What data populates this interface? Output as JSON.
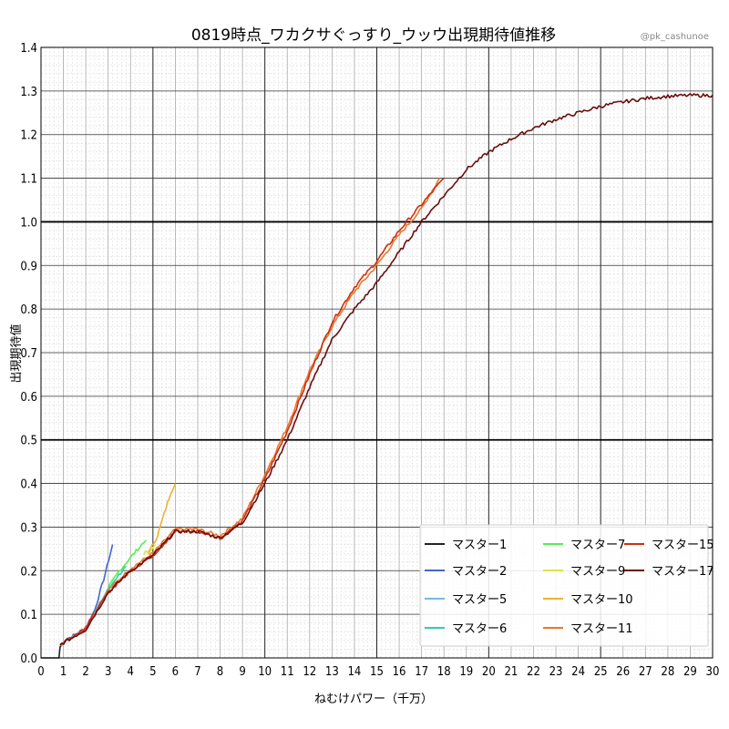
{
  "chart_data": {
    "type": "line",
    "title": "0819時点_ワカクサぐっすり_ウッウ出現期待値推移",
    "credit": "@pk_cashunoe",
    "xlabel": "ねむけパワー（千万）",
    "ylabel": "出現期待値",
    "xlim": [
      0,
      30
    ],
    "ylim": [
      0,
      1.4
    ],
    "xticks": [
      "0",
      "1",
      "2",
      "3",
      "4",
      "5",
      "6",
      "7",
      "8",
      "9",
      "10",
      "11",
      "12",
      "13",
      "14",
      "15",
      "16",
      "17",
      "18",
      "19",
      "20",
      "21",
      "22",
      "23",
      "24",
      "25",
      "26",
      "27",
      "28",
      "29",
      "30"
    ],
    "yticks": [
      "0.0",
      "0.1",
      "0.2",
      "0.3",
      "0.4",
      "0.5",
      "0.6",
      "0.7",
      "0.8",
      "0.9",
      "1.0",
      "1.1",
      "1.2",
      "1.3",
      "1.4"
    ],
    "grid": true,
    "legend_position": "lower-right",
    "series": [
      {
        "name": "マスター1",
        "color": "#222222",
        "x": [
          0,
          0.8,
          0.85,
          1.0
        ],
        "y": [
          0,
          0,
          0.025,
          0.035
        ]
      },
      {
        "name": "マスター2",
        "color": "#4466cc",
        "x": [
          0.85,
          1.2,
          1.6,
          2.0,
          2.4,
          2.8,
          3.1,
          3.2
        ],
        "y": [
          0.03,
          0.045,
          0.055,
          0.07,
          0.11,
          0.18,
          0.24,
          0.26
        ]
      },
      {
        "name": "マスター5",
        "color": "#77b8e0",
        "x": [
          0.85,
          1.4,
          2.0,
          2.6,
          3.0
        ],
        "y": [
          0.03,
          0.05,
          0.065,
          0.12,
          0.16
        ]
      },
      {
        "name": "マスター6",
        "color": "#33ccaa",
        "x": [
          2.2,
          2.8,
          3.3,
          3.8
        ],
        "y": [
          0.085,
          0.14,
          0.18,
          0.21
        ]
      },
      {
        "name": "マスター7",
        "color": "#55ee55",
        "x": [
          3.0,
          3.5,
          4.0,
          4.5,
          4.7
        ],
        "y": [
          0.16,
          0.2,
          0.23,
          0.26,
          0.27
        ]
      },
      {
        "name": "マスター9",
        "color": "#d8e84a",
        "x": [
          4.6,
          4.9,
          5.1
        ],
        "y": [
          0.24,
          0.245,
          0.26
        ]
      },
      {
        "name": "マスター10",
        "color": "#f0b030",
        "x": [
          4.8,
          5.2,
          5.5,
          5.8,
          6.0
        ],
        "y": [
          0.24,
          0.28,
          0.33,
          0.38,
          0.4
        ]
      },
      {
        "name": "マスター11",
        "color": "#e87830",
        "x": [
          0.85,
          2.0,
          3.0,
          4.0,
          5.0,
          6.0,
          7.0,
          8.0,
          9.0,
          10.0,
          11.0,
          12.0,
          13.0,
          14.0,
          15.0,
          16.0,
          17.0,
          17.8
        ],
        "y": [
          0.03,
          0.07,
          0.155,
          0.205,
          0.24,
          0.295,
          0.295,
          0.28,
          0.32,
          0.42,
          0.53,
          0.66,
          0.76,
          0.84,
          0.9,
          0.97,
          1.03,
          1.1
        ]
      },
      {
        "name": "マスター15",
        "color": "#cc3010",
        "x": [
          0.85,
          2.0,
          3.0,
          4.0,
          5.0,
          6.0,
          7.0,
          8.0,
          9.0,
          10.0,
          11.0,
          12.0,
          13.0,
          14.0,
          15.0,
          16.0,
          17.0,
          18.0
        ],
        "y": [
          0.03,
          0.07,
          0.15,
          0.2,
          0.235,
          0.29,
          0.29,
          0.275,
          0.315,
          0.41,
          0.52,
          0.65,
          0.77,
          0.85,
          0.91,
          0.98,
          1.04,
          1.1
        ]
      },
      {
        "name": "マスター17",
        "color": "#6a0e0e",
        "x": [
          0.85,
          2.0,
          3.0,
          4.0,
          5.0,
          6.0,
          7.0,
          8.0,
          9.0,
          10.0,
          11.0,
          12.0,
          13.0,
          14.0,
          15.0,
          16.0,
          17.0,
          18.0,
          19.0,
          20.0,
          21.0,
          22.0,
          23.0,
          24.0,
          25.0,
          26.0,
          27.0,
          28.0,
          29.0,
          30.0
        ],
        "y": [
          0.03,
          0.065,
          0.15,
          0.2,
          0.235,
          0.29,
          0.29,
          0.275,
          0.31,
          0.4,
          0.5,
          0.62,
          0.73,
          0.8,
          0.86,
          0.93,
          1.0,
          1.06,
          1.12,
          1.16,
          1.19,
          1.215,
          1.235,
          1.25,
          1.265,
          1.275,
          1.283,
          1.288,
          1.29,
          1.29
        ]
      }
    ]
  }
}
